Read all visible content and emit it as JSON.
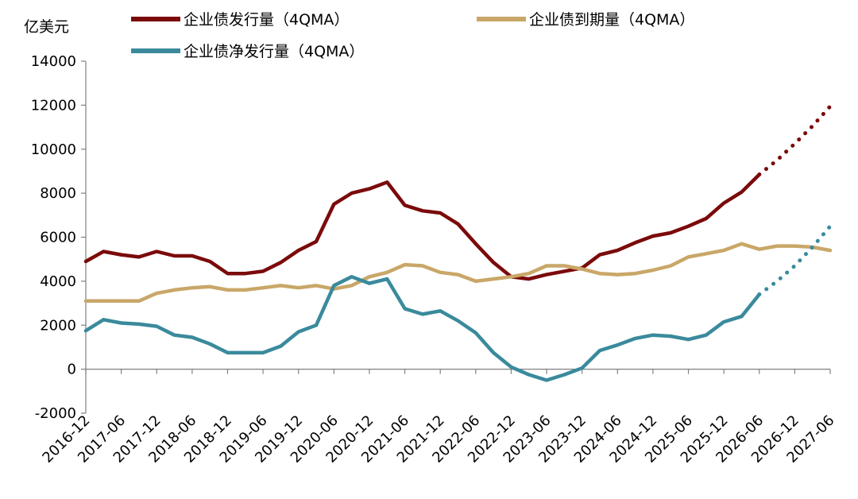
{
  "chart_data": {
    "type": "line",
    "ylabel": "亿美元",
    "ylim": [
      -2000,
      14000
    ],
    "yticks": [
      14000,
      12000,
      10000,
      8000,
      6000,
      4000,
      2000,
      0,
      -2000
    ],
    "x_tick_labels": [
      "2016-12",
      "2017-06",
      "2017-12",
      "2018-06",
      "2018-12",
      "2019-06",
      "2019-12",
      "2020-06",
      "2020-12",
      "2021-06",
      "2021-12",
      "2022-06",
      "2022-12",
      "2023-06",
      "2023-12",
      "2024-06",
      "2024-12",
      "2025-06",
      "2025-12",
      "2026-06",
      "2026-12",
      "2027-06"
    ],
    "grid": false,
    "legend_position": "top",
    "series": [
      {
        "name": "企业债发行量（4QMA）",
        "color": "#7b0a0a",
        "values": [
          4900,
          5350,
          5200,
          5100,
          5350,
          5150,
          5150,
          4900,
          4350,
          4350,
          4450,
          4850,
          5400,
          5800,
          7500,
          8000,
          8200,
          8500,
          7450,
          7200,
          7100,
          6600,
          5700,
          4850,
          4200,
          4100,
          4300,
          4450,
          4600,
          5200,
          5400,
          5750,
          6050,
          6200,
          6500,
          6850,
          7550,
          8050,
          8850
        ],
        "projection_values": [
          8850,
          9500,
          10250,
          11050,
          11950
        ]
      },
      {
        "name": "企业债到期量（4QMA）",
        "color": "#c9a768",
        "values": [
          3100,
          3100,
          3100,
          3100,
          3450,
          3600,
          3700,
          3750,
          3600,
          3600,
          3700,
          3800,
          3700,
          3800,
          3650,
          3800,
          4200,
          4400,
          4750,
          4700,
          4400,
          4300,
          4000,
          4100,
          4200,
          4350,
          4700,
          4700,
          4550,
          4350,
          4300,
          4350,
          4500,
          4700,
          5100,
          5250,
          5400,
          5700,
          5450,
          5600,
          5600,
          5550,
          5400
        ]
      },
      {
        "name": "企业债净发行量（4QMA）",
        "color": "#3a8a9c",
        "values": [
          1750,
          2250,
          2100,
          2050,
          1950,
          1550,
          1450,
          1150,
          750,
          750,
          750,
          1050,
          1700,
          2000,
          3800,
          4200,
          3900,
          4100,
          2750,
          2500,
          2650,
          2200,
          1650,
          750,
          100,
          -250,
          -500,
          -250,
          50,
          850,
          1100,
          1400,
          1550,
          1500,
          1350,
          1550,
          2150,
          2400,
          3400
        ],
        "projection_values": [
          3400,
          4000,
          4700,
          5550,
          6500
        ]
      }
    ]
  }
}
